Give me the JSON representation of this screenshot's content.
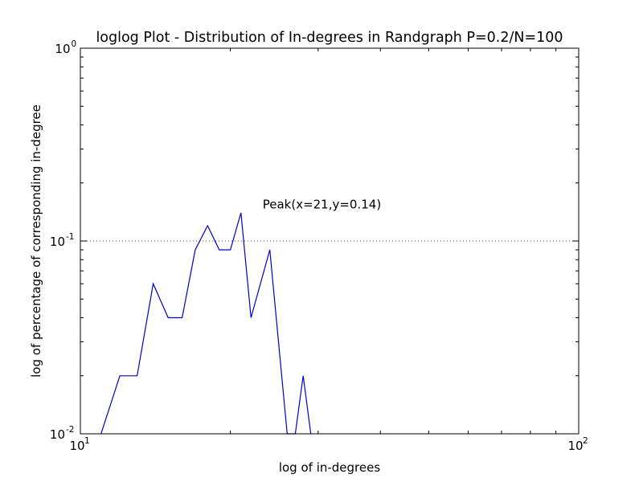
{
  "chart_data": {
    "type": "line",
    "title": "loglog Plot - Distribution of In-degrees in Randgraph P=0.2/N=100",
    "xlabel": "log of in-degrees",
    "ylabel": "log of percentage of corresponding in-degree",
    "xscale": "log",
    "yscale": "log",
    "xlim": [
      10,
      100
    ],
    "ylim": [
      0.01,
      1
    ],
    "x_ticks": [
      {
        "base": "10",
        "exp": "1",
        "value": 10
      },
      {
        "base": "10",
        "exp": "2",
        "value": 100
      }
    ],
    "y_ticks": [
      {
        "base": "10",
        "exp": "-2",
        "value": 0.01
      },
      {
        "base": "10",
        "exp": "-1",
        "value": 0.1
      },
      {
        "base": "10",
        "exp": "0",
        "value": 1
      }
    ],
    "grid": "horizontal dotted at y=0.1",
    "series": [
      {
        "color": "#0000cc",
        "x": [
          11,
          12,
          13,
          14,
          15,
          16,
          17,
          18,
          19,
          20,
          21,
          22,
          24,
          26,
          27,
          28,
          29
        ],
        "y": [
          0.01,
          0.02,
          0.02,
          0.06,
          0.04,
          0.04,
          0.09,
          0.12,
          0.09,
          0.09,
          0.14,
          0.04,
          0.09,
          0.01,
          0.01,
          0.02,
          0.01
        ]
      }
    ],
    "annotations": [
      {
        "text": "Peak(x=21,y=0.14)",
        "x": 25,
        "y": 0.155
      }
    ]
  }
}
